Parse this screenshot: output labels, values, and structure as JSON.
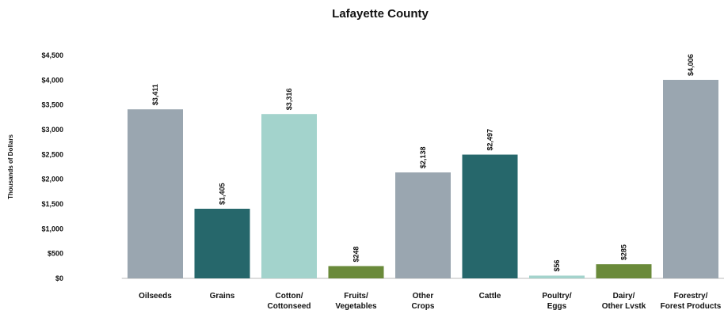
{
  "chart_data": {
    "type": "bar",
    "title": "Lafayette County",
    "xlabel": "",
    "ylabel": "Thousands of Dollars",
    "ylim": [
      0,
      4500
    ],
    "ytick_step": 500,
    "ytick_labels": [
      "$0",
      "$500",
      "$1,000",
      "$1,500",
      "$2,000",
      "$2,500",
      "$3,000",
      "$3,500",
      "$4,000",
      "$4,500"
    ],
    "grid": false,
    "legend": "none",
    "categories": [
      [
        "Oilseeds"
      ],
      [
        "Grains"
      ],
      [
        "Cotton/",
        "Cottonseed"
      ],
      [
        "Fruits/",
        "Vegetables"
      ],
      [
        "Other",
        "Crops"
      ],
      [
        "Cattle"
      ],
      [
        "Poultry/",
        "Eggs"
      ],
      [
        "Dairy/",
        "Other Lvstk"
      ],
      [
        "Forestry/",
        "Forest Products"
      ]
    ],
    "values": [
      3411,
      1405,
      3316,
      248,
      2138,
      2497,
      56,
      285,
      4006
    ],
    "value_labels": [
      "$3,411",
      "$1,405",
      "$3,316",
      "$248",
      "$2,138",
      "$2,497",
      "$56",
      "$285",
      "$4,006"
    ],
    "colors": [
      "#9aa6b0",
      "#26676b",
      "#a3d3cc",
      "#6a8a3a",
      "#9aa6b0",
      "#26676b",
      "#a3d3cc",
      "#6a8a3a",
      "#9aa6b0"
    ]
  }
}
